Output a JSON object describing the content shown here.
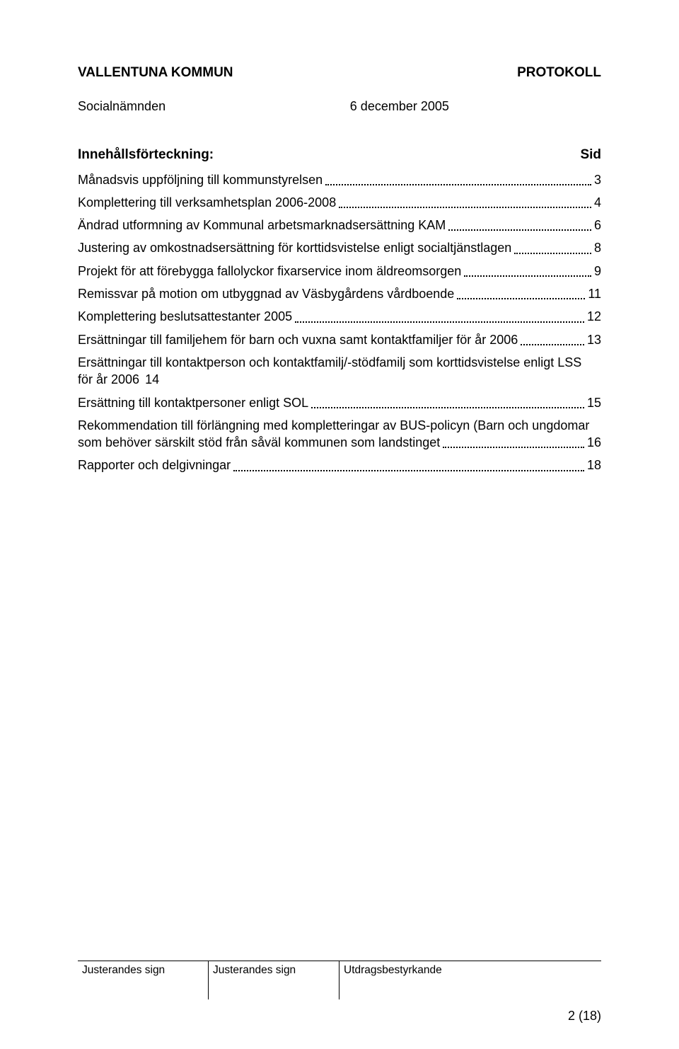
{
  "header": {
    "org": "VALLENTUNA KOMMUN",
    "doc_type": "PROTOKOLL",
    "dept": "Socialnämnden",
    "date": "6 december 2005"
  },
  "toc": {
    "title": "Innehållsförteckning:",
    "page_label": "Sid",
    "entries": [
      {
        "text": "Månadsvis uppföljning till kommunstyrelsen",
        "page": "3"
      },
      {
        "text": "Komplettering till verksamhetsplan 2006-2008",
        "page": "4"
      },
      {
        "text": "Ändrad utformning av Kommunal arbetsmarknadsersättning KAM",
        "page": "6"
      },
      {
        "text": "Justering av omkostnadsersättning för korttidsvistelse enligt socialtjänstlagen",
        "page": "8"
      },
      {
        "text": "Projekt för att förebygga fallolyckor fixarservice inom äldreomsorgen",
        "page": "9"
      },
      {
        "text": "Remissvar på motion om utbyggnad av Väsbygårdens vårdboende",
        "page": "11"
      },
      {
        "text": "Komplettering beslutsattestanter 2005",
        "page": "12"
      },
      {
        "text": "Ersättningar till familjehem för barn och vuxna samt kontaktfamiljer för år 2006",
        "page": "13"
      },
      {
        "wrap": true,
        "line1": "Ersättningar till kontaktperson och kontaktfamilj/-stödfamilj som     korttidsvistelse enligt LSS",
        "line2": "för år 2006",
        "page": "14",
        "leader": false
      },
      {
        "text": "Ersättning till kontaktpersoner enligt SOL",
        "page": "15"
      },
      {
        "wrap": true,
        "line1": "Rekommendation till förlängning med kompletteringar av BUS-policyn (Barn och ungdomar",
        "line2": "som behöver särskilt stöd från såväl kommunen som landstinget",
        "page": "16",
        "leader": true
      },
      {
        "text": "Rapporter och delgivningar",
        "page": "18"
      }
    ]
  },
  "footer": {
    "cells": [
      "Justerandes sign",
      "Justerandes sign",
      "Utdragsbestyrkande"
    ],
    "page_number": "2 (18)"
  }
}
